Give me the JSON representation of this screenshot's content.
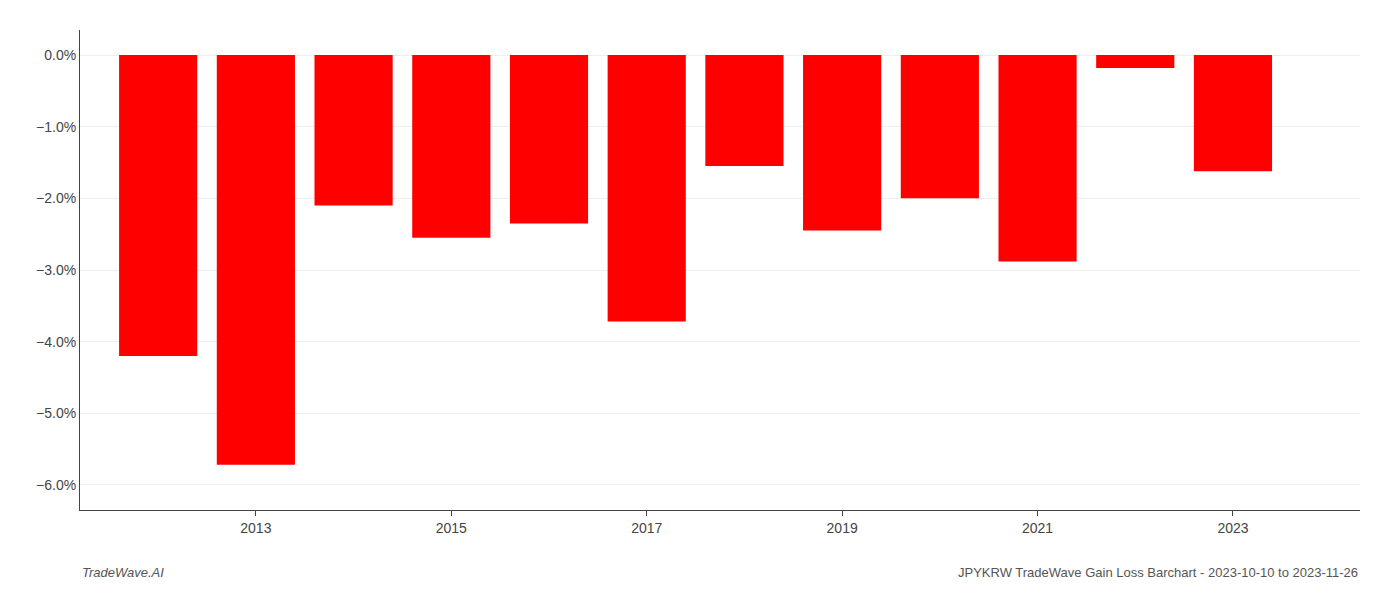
{
  "chart_data": {
    "type": "bar",
    "x": [
      2012,
      2013,
      2014,
      2015,
      2016,
      2017,
      2018,
      2019,
      2020,
      2021,
      2022,
      2023
    ],
    "values": [
      -4.2,
      -5.72,
      -2.1,
      -2.55,
      -2.35,
      -3.72,
      -1.55,
      -2.45,
      -2.0,
      -2.88,
      -0.18,
      -1.62
    ],
    "color": "#ff0000",
    "xlim": [
      2011.2,
      2024.3
    ],
    "xticks": [
      2013,
      2015,
      2017,
      2019,
      2021,
      2023
    ],
    "ylim": [
      -6.35,
      0.35
    ],
    "yticks": [
      {
        "value": 0.0,
        "label": "0.0%"
      },
      {
        "value": -1.0,
        "label": "−1.0%"
      },
      {
        "value": -2.0,
        "label": "−2.0%"
      },
      {
        "value": -3.0,
        "label": "−3.0%"
      },
      {
        "value": -4.0,
        "label": "−4.0%"
      },
      {
        "value": -5.0,
        "label": "−5.0%"
      },
      {
        "value": -6.0,
        "label": "−6.0%"
      }
    ],
    "grid": true,
    "annotations": [
      "TradeWave.AI",
      "JPYKRW TradeWave Gain Loss Barchart - 2023-10-10 to 2023-11-26"
    ]
  }
}
